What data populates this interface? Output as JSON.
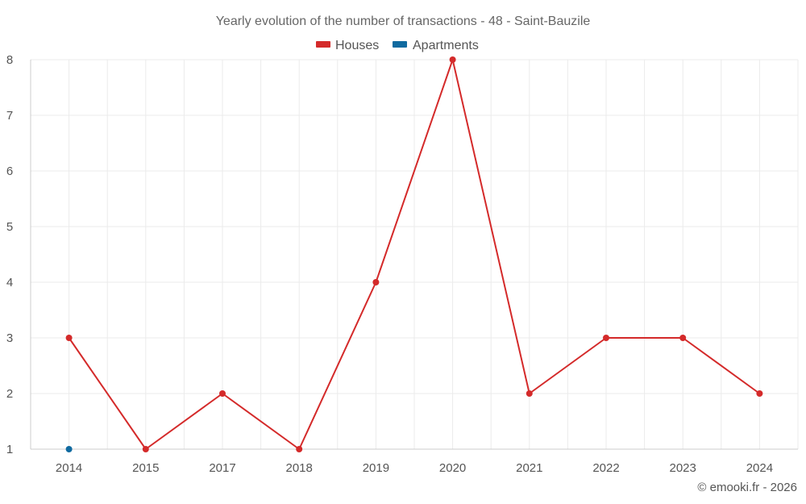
{
  "chart_data": {
    "type": "line",
    "title": "Yearly evolution of the number of transactions - 48 - Saint-Bauzile",
    "categories": [
      "2014",
      "2015",
      "2017",
      "2018",
      "2019",
      "2020",
      "2021",
      "2022",
      "2023",
      "2024"
    ],
    "series": [
      {
        "name": "Houses",
        "color": "#d42a2a",
        "values": [
          3,
          1,
          2,
          1,
          4,
          8,
          2,
          3,
          3,
          2
        ]
      },
      {
        "name": "Apartments",
        "color": "#0f6aa0",
        "values": [
          1,
          null,
          null,
          null,
          null,
          null,
          null,
          null,
          null,
          null
        ]
      }
    ],
    "yticks": [
      1,
      2,
      3,
      4,
      5,
      6,
      7,
      8
    ],
    "ylim": [
      1,
      8
    ],
    "grid": true,
    "legend_position": "top-center"
  },
  "credit": "© emooki.fr - 2026"
}
